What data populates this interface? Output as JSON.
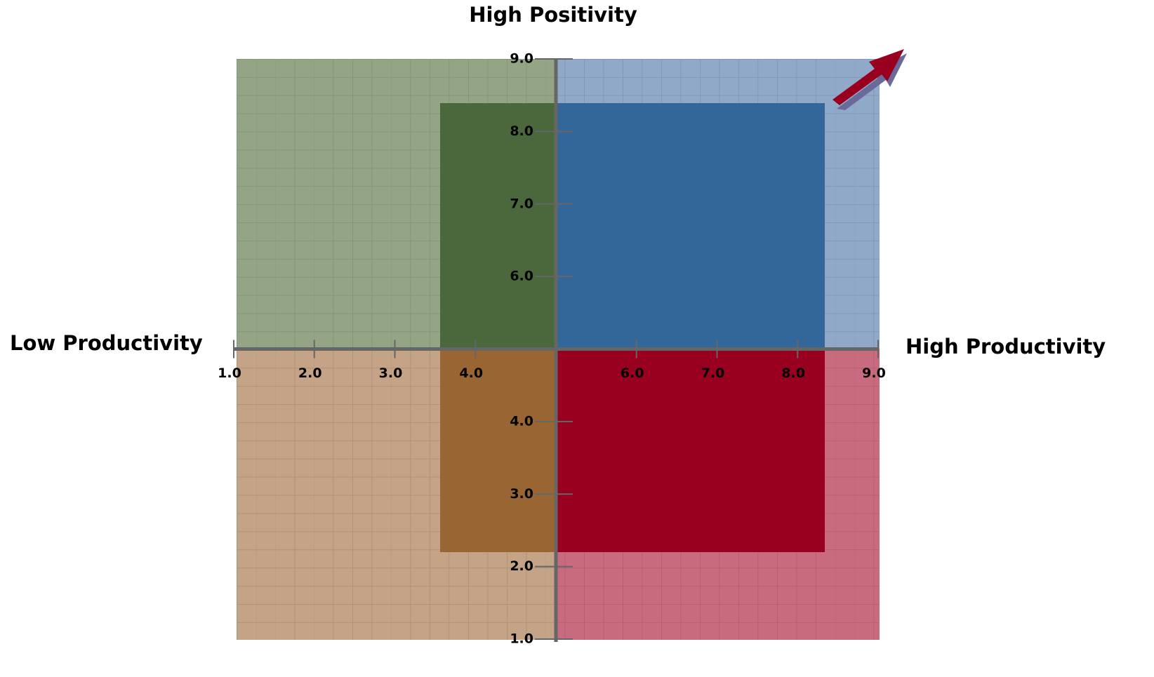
{
  "chart_data": {
    "type": "quadrant",
    "title": "High Positivity",
    "xlabel_left": "Low Productivity",
    "xlabel_right": "High Productivity",
    "xlim": [
      1,
      9
    ],
    "ylim": [
      1,
      9
    ],
    "xticks": [
      {
        "value": 1,
        "label": "1.0"
      },
      {
        "value": 2,
        "label": "2.0"
      },
      {
        "value": 3,
        "label": "3.0"
      },
      {
        "value": 4,
        "label": "4.0"
      },
      {
        "value": 6,
        "label": "6.0"
      },
      {
        "value": 7,
        "label": "7.0"
      },
      {
        "value": 8,
        "label": "8.0"
      },
      {
        "value": 9,
        "label": "9.0"
      }
    ],
    "yticks": [
      {
        "value": 1,
        "label": "1.0"
      },
      {
        "value": 2,
        "label": "2.0"
      },
      {
        "value": 3,
        "label": "3.0"
      },
      {
        "value": 4,
        "label": "4.0"
      },
      {
        "value": 6,
        "label": "6.0"
      },
      {
        "value": 7,
        "label": "7.0"
      },
      {
        "value": 8,
        "label": "8.0"
      },
      {
        "value": 9,
        "label": "9.0"
      }
    ],
    "axis_color": "#666666"
  }
}
